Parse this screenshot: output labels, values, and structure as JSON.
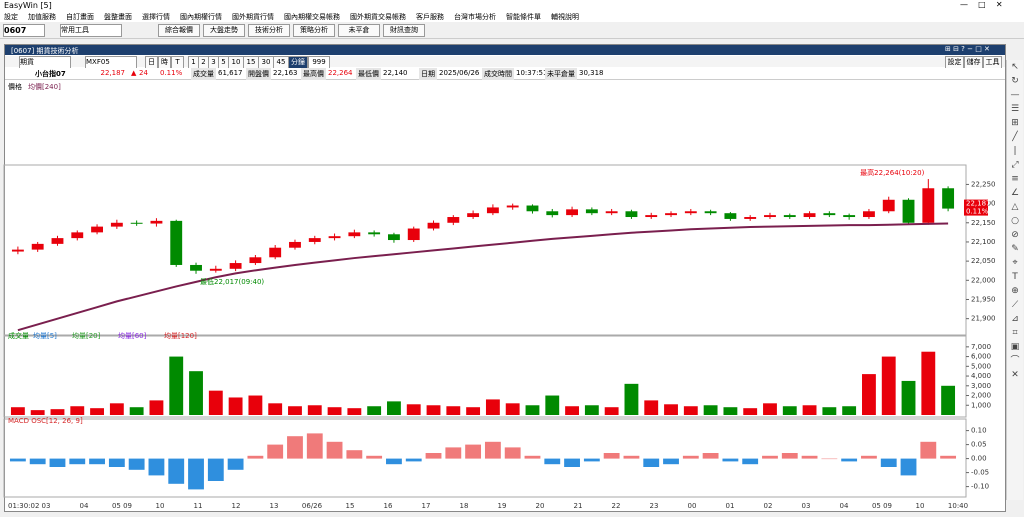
{
  "window": {
    "title": "EasyWin [5]"
  },
  "menu": [
    "設定",
    "加值服務",
    "自訂畫面",
    "盤整畫面",
    "選擇行情",
    "國內期權行情",
    "國外期貨行情",
    "國內期權交易帳務",
    "國外期貨交易帳務",
    "客戶服務",
    "台灣市場分析",
    "智能條件單",
    "輔視說明"
  ],
  "toolbar": {
    "code": "0607",
    "tool": "常用工具",
    "buttons": [
      "綜合報價",
      "大盤走勢",
      "技術分析",
      "策略分析",
      "未平倉",
      "財訊查詢"
    ]
  },
  "panel": {
    "title": "[0607] 期貨技術分析",
    "market": "期貨",
    "symbol": "MXF05",
    "modes": [
      "日",
      "時",
      "T"
    ],
    "periods": [
      "1",
      "2",
      "3",
      "5",
      "10",
      "15",
      "30",
      "45"
    ],
    "period_label": "分鐘",
    "count": "999",
    "actions": [
      "設定",
      "儲存",
      "工具"
    ]
  },
  "quote": {
    "name": "小台指07",
    "last": "22,187",
    "change": "24",
    "change_pct": "0.11%",
    "fields": [
      {
        "label": "成交量",
        "value": "61,617"
      },
      {
        "label": "開盤價",
        "value": "22,163"
      },
      {
        "label": "最高價",
        "value": "22,264"
      },
      {
        "label": "最低價",
        "value": "22,140"
      },
      {
        "label": "日期",
        "value": "2025/06/26"
      },
      {
        "label": "成交時間",
        "value": "10:37:51"
      },
      {
        "label": "未平倉量",
        "value": "30,318"
      }
    ]
  },
  "chart_data": [
    {
      "type": "candlestick",
      "title": "價格",
      "series": [
        {
          "name": "價格",
          "up_color": "#e8000b",
          "down_color": "#008a00",
          "open": [
            22075,
            22080,
            22095,
            22110,
            22125,
            22140,
            22150,
            22148,
            22155,
            22040,
            22025,
            22030,
            22045,
            22060,
            22085,
            22100,
            22110,
            22115,
            22125,
            22120,
            22105,
            22135,
            22150,
            22165,
            22175,
            22190,
            22195,
            22180,
            22170,
            22185,
            22175,
            22180,
            22165,
            22170,
            22175,
            22180,
            22175,
            22160,
            22165,
            22170,
            22165,
            22175,
            22170,
            22165,
            22180,
            22210,
            22150,
            22240
          ],
          "high": [
            22088,
            22100,
            22116,
            22130,
            22146,
            22158,
            22156,
            22162,
            22158,
            22046,
            22038,
            22052,
            22066,
            22092,
            22106,
            22116,
            22122,
            22132,
            22130,
            22124,
            22140,
            22156,
            22170,
            22182,
            22198,
            22200,
            22198,
            22186,
            22192,
            22190,
            22186,
            22184,
            22176,
            22180,
            22186,
            22184,
            22178,
            22170,
            22176,
            22174,
            22180,
            22180,
            22174,
            22186,
            22218,
            22214,
            22264,
            22245
          ],
          "low": [
            22068,
            22074,
            22090,
            22104,
            22120,
            22134,
            22142,
            22140,
            22035,
            22017,
            22020,
            22024,
            22040,
            22055,
            22080,
            22094,
            22104,
            22110,
            22114,
            22098,
            22100,
            22130,
            22144,
            22160,
            22170,
            22184,
            22174,
            22164,
            22165,
            22170,
            22170,
            22160,
            22160,
            22165,
            22170,
            22170,
            22155,
            22155,
            22160,
            22160,
            22160,
            22165,
            22158,
            22160,
            22175,
            22145,
            22145,
            22180
          ],
          "close": [
            22080,
            22095,
            22110,
            22125,
            22140,
            22150,
            22148,
            22155,
            22040,
            22025,
            22030,
            22045,
            22060,
            22085,
            22100,
            22110,
            22115,
            22125,
            22120,
            22105,
            22135,
            22150,
            22165,
            22175,
            22190,
            22195,
            22180,
            22170,
            22185,
            22175,
            22180,
            22165,
            22170,
            22175,
            22180,
            22175,
            22160,
            22165,
            22170,
            22165,
            22175,
            22170,
            22165,
            22180,
            22210,
            22150,
            22240,
            22187
          ]
        },
        {
          "name": "均價[240]",
          "color": "#7a1f4e",
          "values": [
            21870,
            21885,
            21900,
            21915,
            21930,
            21945,
            21958,
            21971,
            21984,
            21996,
            22008,
            22018,
            22026,
            22033,
            22040,
            22046,
            22052,
            22058,
            22063,
            22068,
            22073,
            22078,
            22083,
            22088,
            22093,
            22098,
            22103,
            22108,
            22112,
            22116,
            22120,
            22124,
            22127,
            22130,
            22133,
            22135,
            22137,
            22139,
            22140,
            22141,
            22142,
            22143,
            22144,
            22144,
            22145,
            22146,
            22147,
            22148
          ]
        }
      ],
      "annotations": [
        "最高22,264(10:20)",
        "最低22,017(09:40)"
      ],
      "ylim": [
        21860,
        22285
      ],
      "yticks": [
        {
          "value": 21900,
          "label": "21,900"
        },
        {
          "value": 21950,
          "label": "21,950"
        },
        {
          "value": 22000,
          "label": "22,000"
        },
        {
          "value": 22050,
          "label": "22,050"
        },
        {
          "value": 22100,
          "label": "22,100"
        },
        {
          "value": 22150,
          "label": "22,150"
        },
        {
          "value": 22200,
          "label": "22,200"
        },
        {
          "value": 22250,
          "label": "22,250"
        }
      ]
    },
    {
      "type": "bar",
      "title": "成交量",
      "series": [
        {
          "name": "成交量",
          "up_color": "#e8000b",
          "down_color": "#008a00",
          "values": [
            800,
            500,
            600,
            900,
            700,
            1200,
            800,
            1500,
            6000,
            4500,
            2500,
            1800,
            2000,
            1200,
            900,
            1000,
            800,
            700,
            900,
            1400,
            1100,
            1000,
            900,
            800,
            1600,
            1200,
            1000,
            2000,
            900,
            1000,
            800,
            3200,
            1500,
            1100,
            900,
            1000,
            800,
            700,
            1200,
            900,
            1000,
            800,
            900,
            4200,
            6000,
            3500,
            6500,
            3000
          ]
        },
        {
          "name": "均量[5]",
          "color": "#1f77d0"
        },
        {
          "name": "均量[20]",
          "color": "#2ca02c"
        },
        {
          "name": "均量[60]",
          "color": "#8a2be2"
        },
        {
          "name": "均量[120]",
          "color": "#d62728"
        }
      ],
      "ylim": [
        0,
        7600
      ],
      "yticks": [
        {
          "value": 1000,
          "label": "1,000"
        },
        {
          "value": 2000,
          "label": "2,000"
        },
        {
          "value": 3000,
          "label": "3,000"
        },
        {
          "value": 4000,
          "label": "4,000"
        },
        {
          "value": 5000,
          "label": "5,000"
        },
        {
          "value": 6000,
          "label": "6,000"
        },
        {
          "value": 7000,
          "label": "7,000"
        }
      ]
    },
    {
      "type": "bar",
      "title": "MACD OSC[12, 26, 9]",
      "pos_color": "#f07a7a",
      "neg_color": "#2f8fde",
      "values": [
        -0.01,
        -0.02,
        -0.03,
        -0.02,
        -0.02,
        -0.03,
        -0.04,
        -0.06,
        -0.09,
        -0.11,
        -0.08,
        -0.04,
        0.01,
        0.05,
        0.08,
        0.09,
        0.06,
        0.03,
        0.01,
        -0.02,
        -0.01,
        0.02,
        0.04,
        0.05,
        0.06,
        0.04,
        0.01,
        -0.02,
        -0.03,
        -0.01,
        0.02,
        0.01,
        -0.03,
        -0.02,
        0.01,
        0.02,
        -0.01,
        -0.02,
        0.01,
        0.02,
        0.01,
        0,
        -0.01,
        0.01,
        -0.03,
        -0.06,
        0.06,
        0.01
      ],
      "ylim": [
        -0.13,
        0.12
      ],
      "yticks": [
        {
          "value": 0.1,
          "label": "0.10"
        },
        0.05,
        {
          "value": 0,
          "label": "0.00"
        },
        -0.05,
        {
          "value": -0.1,
          "label": "-0.10"
        }
      ],
      "x_labels": [
        "01:30:02",
        "03",
        "04",
        "05 09",
        "10",
        "11",
        "12",
        "13",
        "06/26",
        "15",
        "16",
        "17",
        "18",
        "19",
        "20",
        "21",
        "22",
        "23",
        "00",
        "01",
        "02",
        "03",
        "04",
        "05 09",
        "10",
        "10:40"
      ]
    }
  ]
}
